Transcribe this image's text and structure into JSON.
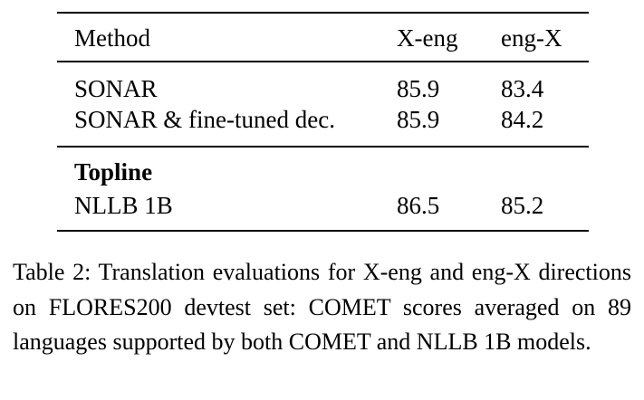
{
  "table": {
    "header": [
      "Method",
      "X-eng",
      "eng-X"
    ],
    "rows": [
      [
        "SONAR",
        85.9,
        83.4
      ],
      [
        "SONAR & fine-tuned dec.",
        85.9,
        84.2
      ]
    ],
    "section": "Topline",
    "section_rows": [
      [
        "NLLB 1B",
        86.5,
        85.2
      ]
    ]
  },
  "caption": "Table 2: Translation evaluations for X-eng and eng-X directions on FLORES200 devtest set: COMET scores averaged on 89 languages supported by both COMET and NLLB 1B models."
}
